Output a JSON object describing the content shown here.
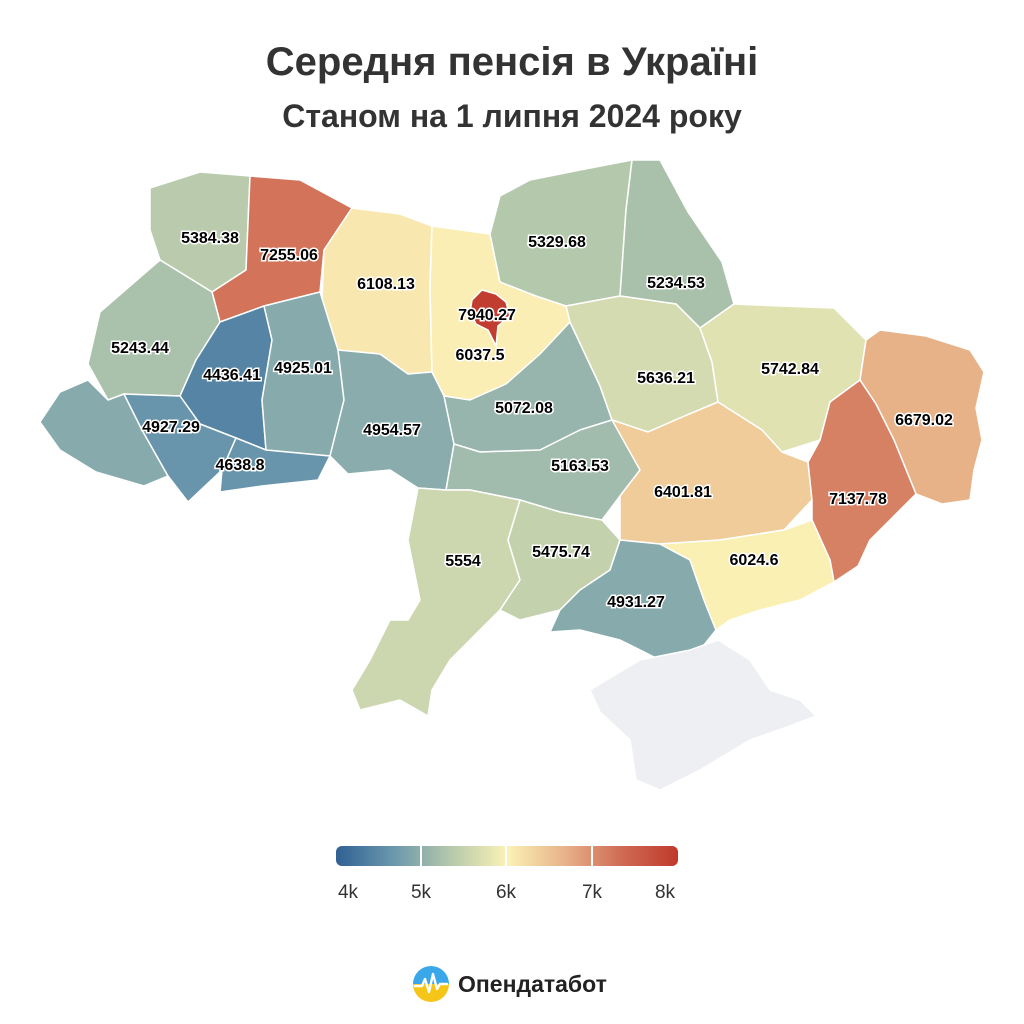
{
  "title": "Середня пенсія в Україні",
  "subtitle": "Станом на 1 липня 2024 року",
  "colors": {
    "scale": [
      "#2f6193",
      "#6a97ad",
      "#b4c8ab",
      "#fbf2b6",
      "#e8b38a",
      "#cf6b54",
      "#c0392b"
    ],
    "no_data": "#eeeff3"
  },
  "legend": {
    "min": 4000,
    "max": 8000,
    "ticks": [
      "4k",
      "5k",
      "6k",
      "7k",
      "8k"
    ]
  },
  "regions": [
    {
      "name": "Волинська",
      "value": 5384.38,
      "label": "5384.38"
    },
    {
      "name": "Рівненська",
      "value": 7255.06,
      "label": "7255.06"
    },
    {
      "name": "Житомирська",
      "value": 6108.13,
      "label": "6108.13"
    },
    {
      "name": "м. Київ",
      "value": 7940.27,
      "label": "7940.27"
    },
    {
      "name": "Київська",
      "value": 6037.5,
      "label": "6037.5"
    },
    {
      "name": "Чернігівська",
      "value": 5329.68,
      "label": "5329.68"
    },
    {
      "name": "Сумська",
      "value": 5234.53,
      "label": "5234.53"
    },
    {
      "name": "Львівська",
      "value": 5243.44,
      "label": "5243.44"
    },
    {
      "name": "Тернопільська",
      "value": 4436.41,
      "label": "4436.41"
    },
    {
      "name": "Хмельницька",
      "value": 4925.01,
      "label": "4925.01"
    },
    {
      "name": "Закарпатська",
      "value": 4927.29,
      "label": "4927.29"
    },
    {
      "name": "Івано-Франківська",
      "value": 4638.8,
      "label": "4638.8"
    },
    {
      "name": "Чернівецька",
      "value": 4638.8,
      "label": ""
    },
    {
      "name": "Вінницька",
      "value": 4954.57,
      "label": "4954.57"
    },
    {
      "name": "Черкаська",
      "value": 5072.08,
      "label": "5072.08"
    },
    {
      "name": "Полтавська",
      "value": 5636.21,
      "label": "5636.21"
    },
    {
      "name": "Харківська",
      "value": 5742.84,
      "label": "5742.84"
    },
    {
      "name": "Луганська",
      "value": 6679.02,
      "label": "6679.02"
    },
    {
      "name": "Кіровоградська",
      "value": 5163.53,
      "label": "5163.53"
    },
    {
      "name": "Дніпропетровська",
      "value": 6401.81,
      "label": "6401.81"
    },
    {
      "name": "Донецька",
      "value": 7137.78,
      "label": "7137.78"
    },
    {
      "name": "Одеська",
      "value": 5554,
      "label": "5554"
    },
    {
      "name": "Миколаївська",
      "value": 5475.74,
      "label": "5475.74"
    },
    {
      "name": "Херсонська",
      "value": 4931.27,
      "label": "4931.27"
    },
    {
      "name": "Запорізька",
      "value": 6024.6,
      "label": "6024.6"
    },
    {
      "name": "АР Крим",
      "value": null,
      "label": ""
    }
  ],
  "brand": {
    "name": "Опендатабот"
  }
}
